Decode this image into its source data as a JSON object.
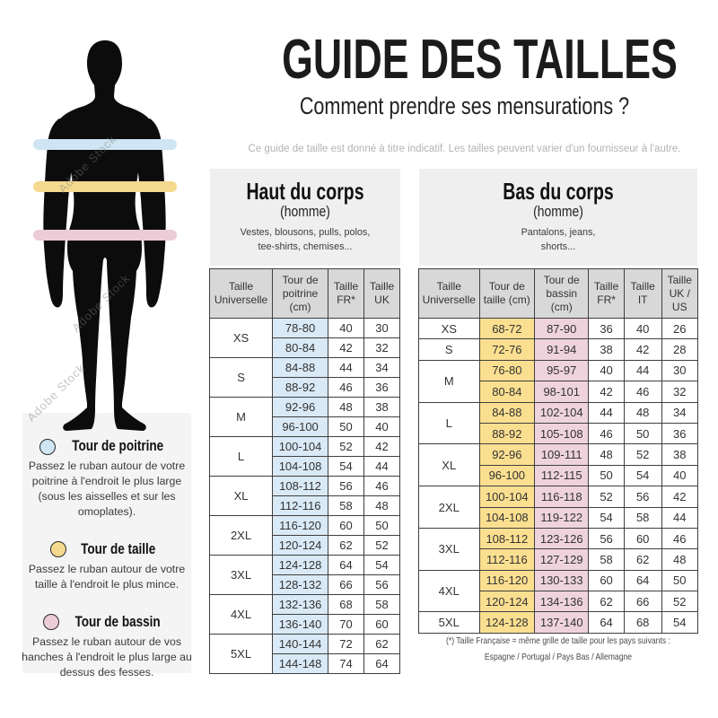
{
  "header": {
    "title": "GUIDE DES TAILLES",
    "subtitle": "Comment prendre ses mensurations ?",
    "disclaimer": "Ce guide de taille est donné à titre indicatif. Les tailles peuvent varier d'un fournisseur à l'autre."
  },
  "watermark": "Adobe Stock",
  "colors": {
    "blue": "#d9e9f6",
    "yellow": "#fbdf90",
    "pink": "#eed3dd",
    "band_blue": "#cfe5f3",
    "band_yellow": "#f4d98e",
    "band_pink": "#ecccd6",
    "header_gray": "#d8d8d8",
    "panel_gray": "#efefef"
  },
  "legend": {
    "items": [
      {
        "color": "#cfe5f3",
        "title": "Tour de poitrine",
        "text": "Passez le ruban autour de votre poitrine à l'endroit le plus large (sous les aisselles et sur les omoplates)."
      },
      {
        "color": "#f4d98e",
        "title": "Tour de taille",
        "text": "Passez le ruban autour de votre taille à l'endroit le plus mince."
      },
      {
        "color": "#ecccd6",
        "title": "Tour de bassin",
        "text": "Passez le ruban autour de vos hanches à l'endroit le plus large au dessus des fesses."
      }
    ]
  },
  "sections": [
    {
      "id": "haut",
      "title": "Haut du corps",
      "subtitle": "(homme)",
      "description": "Vestes, blousons, pulls, polos,\ntee-shirts, chemises...",
      "columns": [
        "Taille Universelle",
        "Tour de poitrine (cm)",
        "Taille FR*",
        "Taille UK"
      ],
      "col_classes": [
        "",
        "blue",
        "",
        ""
      ],
      "groups": [
        {
          "size": "XS",
          "rows": [
            [
              "78-80",
              "40",
              "30"
            ],
            [
              "80-84",
              "42",
              "32"
            ]
          ]
        },
        {
          "size": "S",
          "rows": [
            [
              "84-88",
              "44",
              "34"
            ],
            [
              "88-92",
              "46",
              "36"
            ]
          ]
        },
        {
          "size": "M",
          "rows": [
            [
              "92-96",
              "48",
              "38"
            ],
            [
              "96-100",
              "50",
              "40"
            ]
          ]
        },
        {
          "size": "L",
          "rows": [
            [
              "100-104",
              "52",
              "42"
            ],
            [
              "104-108",
              "54",
              "44"
            ]
          ]
        },
        {
          "size": "XL",
          "rows": [
            [
              "108-112",
              "56",
              "46"
            ],
            [
              "112-116",
              "58",
              "48"
            ]
          ]
        },
        {
          "size": "2XL",
          "rows": [
            [
              "116-120",
              "60",
              "50"
            ],
            [
              "120-124",
              "62",
              "52"
            ]
          ]
        },
        {
          "size": "3XL",
          "rows": [
            [
              "124-128",
              "64",
              "54"
            ],
            [
              "128-132",
              "66",
              "56"
            ]
          ]
        },
        {
          "size": "4XL",
          "rows": [
            [
              "132-136",
              "68",
              "58"
            ],
            [
              "136-140",
              "70",
              "60"
            ]
          ]
        },
        {
          "size": "5XL",
          "rows": [
            [
              "140-144",
              "72",
              "62"
            ],
            [
              "144-148",
              "74",
              "64"
            ]
          ]
        }
      ]
    },
    {
      "id": "bas",
      "title": "Bas du corps",
      "subtitle": "(homme)",
      "description": "Pantalons, jeans,\nshorts...",
      "columns": [
        "Taille Universelle",
        "Tour de taille (cm)",
        "Tour de bassin (cm)",
        "Taille FR*",
        "Taille IT",
        "Taille UK / US"
      ],
      "col_classes": [
        "",
        "yellow",
        "pink",
        "",
        "",
        ""
      ],
      "groups": [
        {
          "size": "XS",
          "rows": [
            [
              "68-72",
              "87-90",
              "36",
              "40",
              "26"
            ]
          ]
        },
        {
          "size": "S",
          "rows": [
            [
              "72-76",
              "91-94",
              "38",
              "42",
              "28"
            ]
          ]
        },
        {
          "size": "M",
          "rows": [
            [
              "76-80",
              "95-97",
              "40",
              "44",
              "30"
            ],
            [
              "80-84",
              "98-101",
              "42",
              "46",
              "32"
            ]
          ]
        },
        {
          "size": "L",
          "rows": [
            [
              "84-88",
              "102-104",
              "44",
              "48",
              "34"
            ],
            [
              "88-92",
              "105-108",
              "46",
              "50",
              "36"
            ]
          ]
        },
        {
          "size": "XL",
          "rows": [
            [
              "92-96",
              "109-111",
              "48",
              "52",
              "38"
            ],
            [
              "96-100",
              "112-115",
              "50",
              "54",
              "40"
            ]
          ]
        },
        {
          "size": "2XL",
          "rows": [
            [
              "100-104",
              "116-118",
              "52",
              "56",
              "42"
            ],
            [
              "104-108",
              "119-122",
              "54",
              "58",
              "44"
            ]
          ]
        },
        {
          "size": "3XL",
          "rows": [
            [
              "108-112",
              "123-126",
              "56",
              "60",
              "46"
            ],
            [
              "112-116",
              "127-129",
              "58",
              "62",
              "48"
            ]
          ]
        },
        {
          "size": "4XL",
          "rows": [
            [
              "116-120",
              "130-133",
              "60",
              "64",
              "50"
            ],
            [
              "120-124",
              "134-136",
              "62",
              "66",
              "52"
            ]
          ]
        },
        {
          "size": "5XL",
          "rows": [
            [
              "124-128",
              "137-140",
              "64",
              "68",
              "54"
            ]
          ]
        }
      ]
    }
  ],
  "footnote": {
    "line1": "(*) Taille Française = même grille de taille pour les pays suivants :",
    "line2": "Espagne / Portugal / Pays Bas / Allemagne"
  }
}
